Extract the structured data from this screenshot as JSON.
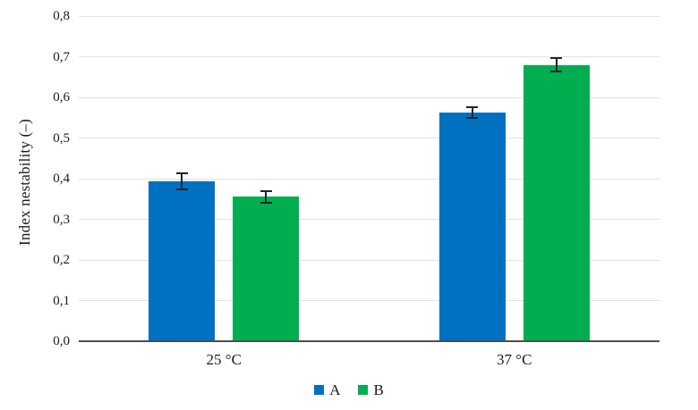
{
  "chart_data": {
    "type": "bar",
    "title": "",
    "categories": [
      "25 °C",
      "37 °C"
    ],
    "series": [
      {
        "name": "A",
        "color": "#0070C0",
        "values": [
          0.393,
          0.562
        ],
        "errors": [
          0.02,
          0.013
        ]
      },
      {
        "name": "B",
        "color": "#00AE50",
        "values": [
          0.355,
          0.68
        ],
        "errors": [
          0.015,
          0.017
        ]
      }
    ],
    "xlabel": "",
    "ylabel": "Index nestability (–)",
    "ylim": [
      0,
      0.8
    ],
    "ytick_step": 0.1,
    "ytick_labels": [
      "0,0",
      "0,1",
      "0,2",
      "0,3",
      "0,4",
      "0,5",
      "0,6",
      "0,7",
      "0,8"
    ],
    "grid": "horizontal",
    "legend_position": "bottom-center",
    "error_bars": true
  },
  "colors": {
    "series_a": "#0070C0",
    "series_b": "#00AE50",
    "gridline": "#E2E2E2",
    "axis_line": "#4D4D4D",
    "error_bar": "#1F2430",
    "background": "#FFFFFF",
    "text": "#1A1A1A"
  }
}
